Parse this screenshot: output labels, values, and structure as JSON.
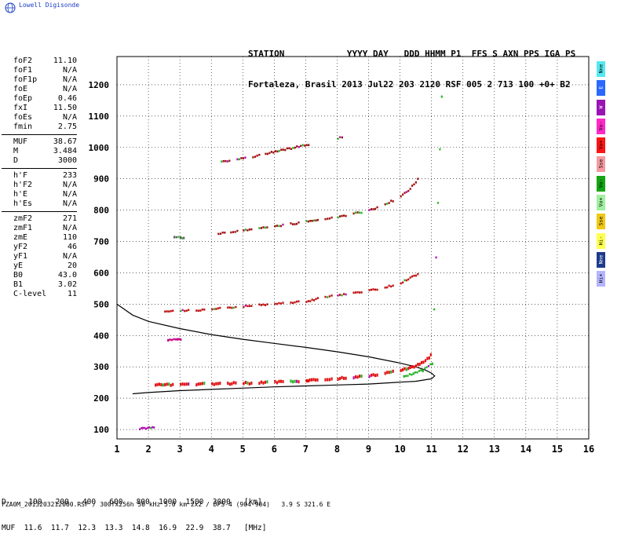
{
  "app": {
    "logo_label": "Lowell Digisonde"
  },
  "header": {
    "line1": "STATION            YYYY DAY   DDD HHMM P1  FFS S AXN PPS IGA PS",
    "line2": "Fortaleza, Brasil 2013 Jul22 203 2120 RSF 005 2 713 100 +0+ B2"
  },
  "params_group1": [
    {
      "name": "foF2",
      "value": "11.10"
    },
    {
      "name": "foF1",
      "value": "N/A"
    },
    {
      "name": "foF1p",
      "value": "N/A"
    },
    {
      "name": "foE",
      "value": "N/A"
    },
    {
      "name": "foEp",
      "value": "0.46"
    },
    {
      "name": "fxI",
      "value": "11.50"
    },
    {
      "name": "foEs",
      "value": "N/A"
    },
    {
      "name": "fmin",
      "value": "2.75"
    }
  ],
  "params_group2": [
    {
      "name": "MUF",
      "value": "38.67"
    },
    {
      "name": "M",
      "value": "3.484"
    },
    {
      "name": "D",
      "value": "3000"
    }
  ],
  "params_group3": [
    {
      "name": "h'F",
      "value": "233"
    },
    {
      "name": "h'F2",
      "value": "N/A"
    },
    {
      "name": "h'E",
      "value": "N/A"
    },
    {
      "name": "h'Es",
      "value": "N/A"
    }
  ],
  "params_group4": [
    {
      "name": "zmF2",
      "value": "271"
    },
    {
      "name": "zmF1",
      "value": "N/A"
    },
    {
      "name": "zmE",
      "value": "110"
    },
    {
      "name": "yF2",
      "value": "46"
    },
    {
      "name": "yF1",
      "value": "N/A"
    },
    {
      "name": "yE",
      "value": "20"
    },
    {
      "name": "B0",
      "value": "43.0"
    },
    {
      "name": "B1",
      "value": "3.02"
    },
    {
      "name": "C-level",
      "value": "11"
    }
  ],
  "legend": [
    {
      "label": "Nne",
      "color": "#55e8f0"
    },
    {
      "label": "E",
      "color": "#2a68ff"
    },
    {
      "label": "W",
      "color": "#9a14b4"
    },
    {
      "label": "Vo-",
      "color": "#ff28c8"
    },
    {
      "label": "Vo+",
      "color": "#ff1414"
    },
    {
      "label": "Sse",
      "color": "#f59aa0"
    },
    {
      "label": "Vo-",
      "color": "#14a514"
    },
    {
      "label": "Vo+",
      "color": "#a0f0a0"
    },
    {
      "label": "Sse",
      "color": "#f0c814"
    },
    {
      "label": "Hi-",
      "color": "#ffff50"
    },
    {
      "label": "Nne",
      "color": "#1e3c8c"
    },
    {
      "label": "Hi+",
      "color": "#b4b4ff"
    }
  ],
  "footer": {
    "d_row": "D     100   200   400   600   800  1000  1500  3000   [km]",
    "muf_row": "MUF  11.6  11.7  12.3  13.3  14.8  16.9  22.9  38.7   [MHz]",
    "file_line": "FZA0M_2013203212000.RSF / 300fx256h 50 kHz 5.0 km 2x2 / DPS-4 (904-904)   3.9 S 321.6 E"
  },
  "chart_data": {
    "type": "scatter",
    "xlim": [
      1,
      16
    ],
    "ylim": [
      70,
      1290
    ],
    "x_ticks": [
      1,
      2,
      3,
      4,
      5,
      6,
      7,
      8,
      9,
      10,
      11,
      12,
      13,
      14,
      15,
      16
    ],
    "y_ticks": [
      100,
      200,
      300,
      400,
      500,
      600,
      700,
      800,
      900,
      1000,
      1100,
      1200
    ],
    "grid": true,
    "traces": [
      {
        "name": "F2 1st hop",
        "color": "#e01010",
        "x": [
          2.2,
          2.5,
          3.0,
          3.5,
          4.0,
          4.5,
          5.0,
          5.5,
          6.0,
          6.5,
          7.0,
          7.1,
          7.6,
          8.0,
          8.5,
          9.0,
          9.5,
          10.0,
          10.3,
          10.6,
          10.9,
          11.0
        ],
        "y": [
          243,
          244,
          245,
          246,
          247,
          248,
          249,
          250,
          252,
          254,
          256,
          257,
          262,
          264,
          268,
          273,
          280,
          290,
          298,
          310,
          330,
          350
        ]
      },
      {
        "name": "F2 2nd hop",
        "color": "#c01010",
        "x": [
          2.5,
          3.0,
          3.5,
          4.0,
          4.5,
          5.0,
          5.5,
          6.0,
          6.5,
          7.0,
          7.6,
          8.0,
          8.5,
          9.0,
          9.5,
          10.0,
          10.3,
          10.6
        ],
        "y": [
          476,
          478,
          480,
          484,
          488,
          492,
          497,
          502,
          505,
          508,
          522,
          528,
          535,
          543,
          552,
          568,
          582,
          600
        ]
      },
      {
        "name": "F2 3rd hop",
        "color": "#a01010",
        "x": [
          4.2,
          4.6,
          5.0,
          5.5,
          6.0,
          6.5,
          7.0,
          7.6,
          8.0,
          8.5,
          9.0,
          9.5,
          10.0,
          10.3,
          10.6
        ],
        "y": [
          724,
          730,
          736,
          742,
          748,
          755,
          762,
          772,
          778,
          788,
          798,
          818,
          842,
          868,
          905
        ]
      },
      {
        "name": "F2 4th hop",
        "color": "#a01010",
        "x": [
          4.3,
          4.8,
          5.3,
          5.7,
          8.0,
          8.2
        ],
        "y": [
          955,
          962,
          970,
          980,
          1028,
          1036
        ]
      },
      {
        "name": "E trace",
        "color": "#b010b0",
        "x": [
          1.7,
          1.8,
          1.9,
          2.0,
          2.1,
          2.2
        ],
        "y": [
          101,
          103,
          104,
          105,
          106,
          107
        ]
      },
      {
        "name": "Es 2.6",
        "color": "#c00080",
        "x": [
          2.6,
          2.9,
          3.0
        ],
        "y": [
          385,
          388,
          387
        ]
      },
      {
        "name": "Es 2.9",
        "color": "#606060",
        "x": [
          2.8,
          3.0,
          3.1
        ],
        "y": [
          714,
          712,
          711
        ]
      },
      {
        "name": "F2 ordinary",
        "color": "#2ab52a",
        "x": [
          10.1,
          10.4,
          10.7,
          11.0,
          11.3
        ],
        "y": [
          270,
          278,
          288,
          310,
          1162
        ]
      }
    ],
    "profile": {
      "name": "electron density profile",
      "x": [
        1.0,
        1.5,
        2.0,
        3.0,
        4.0,
        5.0,
        6.0,
        7.0,
        8.0,
        9.0,
        10.0,
        10.5,
        10.8,
        11.0,
        11.1,
        11.0,
        10.5,
        10.0,
        9.0,
        8.0,
        7.0,
        6.0,
        5.0,
        4.0,
        3.0,
        2.0,
        1.5
      ],
      "y": [
        500,
        465,
        445,
        422,
        403,
        388,
        375,
        362,
        348,
        332,
        312,
        300,
        290,
        280,
        271,
        262,
        254,
        251,
        245,
        242,
        239,
        236,
        232,
        228,
        224,
        218,
        214
      ]
    }
  }
}
